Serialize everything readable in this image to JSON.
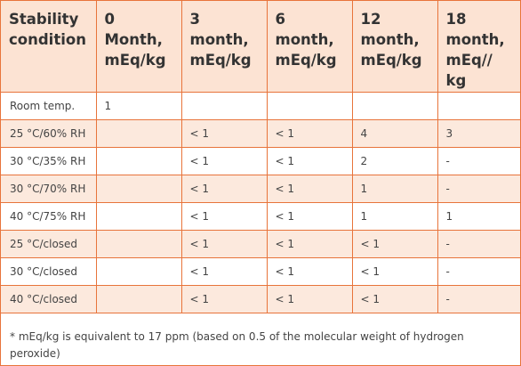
{
  "table": {
    "headers": [
      [
        "Stability",
        "condition"
      ],
      [
        "0",
        "Month,",
        "mEq/kg"
      ],
      [
        "3",
        "month,",
        "mEq/kg"
      ],
      [
        "6",
        "month,",
        "mEq/kg"
      ],
      [
        "12",
        "month,",
        "mEq/kg"
      ],
      [
        "18",
        "month,",
        "mEq//",
        "kg"
      ]
    ],
    "rows": [
      [
        "Room temp.",
        "1",
        "",
        "",
        "",
        ""
      ],
      [
        "25 °C/60% RH",
        "",
        "< 1",
        "< 1",
        "4",
        "3"
      ],
      [
        "30 °C/35% RH",
        "",
        "< 1",
        "< 1",
        "2",
        "-"
      ],
      [
        "30 °C/70% RH",
        "",
        "< 1",
        "< 1",
        "1",
        "-"
      ],
      [
        "40 °C/75% RH",
        "",
        "< 1",
        "< 1",
        "1",
        "1"
      ],
      [
        "25 °C/closed",
        "",
        "< 1",
        "< 1",
        "< 1",
        "-"
      ],
      [
        "30 °C/closed",
        "",
        "< 1",
        "< 1",
        "< 1",
        "-"
      ],
      [
        "40 °C/closed",
        "",
        "< 1",
        "< 1",
        "< 1",
        "-"
      ]
    ]
  },
  "footnote": "* mEq/kg is equivalent to 17 ppm (based on 0.5 of the molecular weight of hydrogen peroxide)",
  "colors": {
    "border": "#e8743b",
    "header_bg": "#fce3d3",
    "stripe_bg": "#fce9dd",
    "text": "#333333"
  }
}
